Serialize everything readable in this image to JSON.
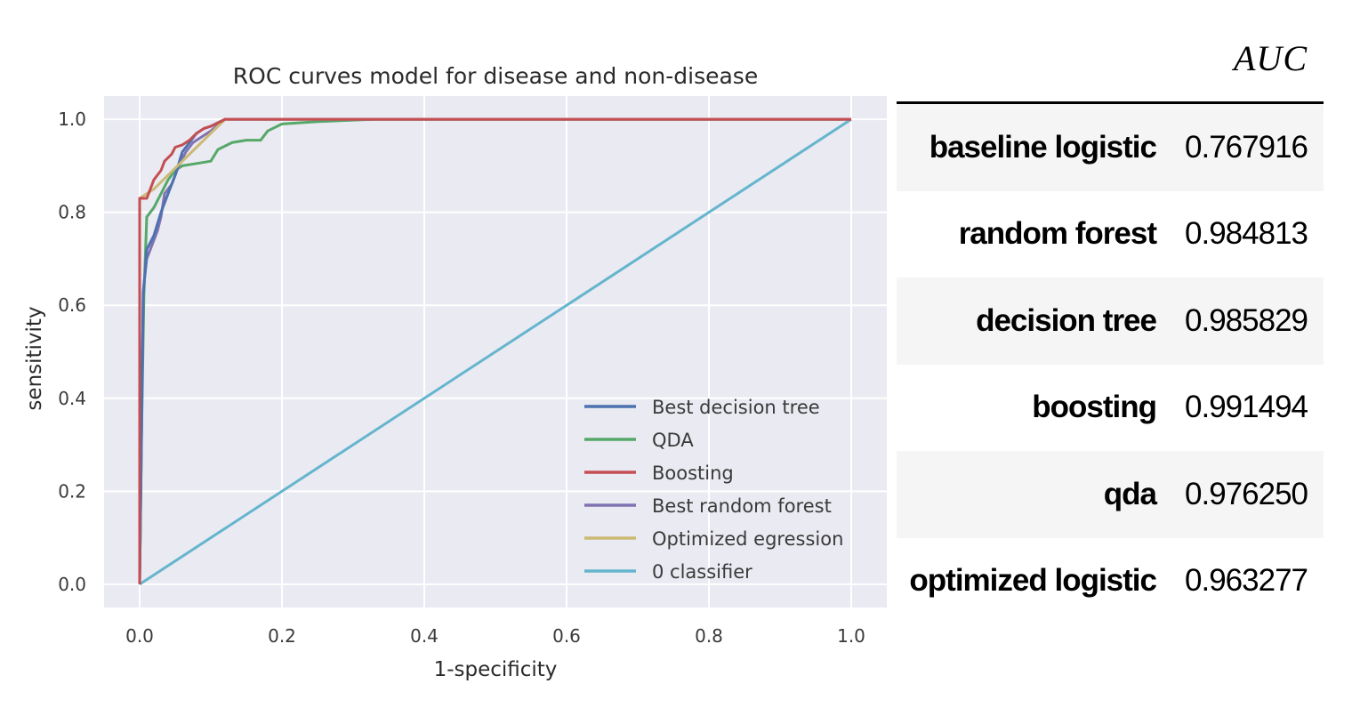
{
  "chart_data": {
    "type": "line",
    "title": "ROC curves model for disease and non-disease",
    "xlabel": "1-specificity",
    "ylabel": "sensitivity",
    "xlim": [
      -0.05,
      1.05
    ],
    "ylim": [
      -0.05,
      1.05
    ],
    "xticks": [
      "0.0",
      "0.2",
      "0.4",
      "0.6",
      "0.8",
      "1.0"
    ],
    "yticks": [
      "0.0",
      "0.2",
      "0.4",
      "0.6",
      "0.8",
      "1.0"
    ],
    "grid": true,
    "legend_position": "lower-right",
    "series": [
      {
        "name": "Best decision tree",
        "color": "#4c72b0",
        "points": [
          [
            0,
            0
          ],
          [
            0.005,
            0.62
          ],
          [
            0.01,
            0.72
          ],
          [
            0.02,
            0.75
          ],
          [
            0.03,
            0.8
          ],
          [
            0.04,
            0.84
          ],
          [
            0.05,
            0.88
          ],
          [
            0.06,
            0.93
          ],
          [
            0.07,
            0.95
          ],
          [
            0.08,
            0.97
          ],
          [
            0.09,
            0.98
          ],
          [
            0.1,
            0.985
          ],
          [
            0.12,
            1.0
          ],
          [
            1.0,
            1.0
          ]
        ]
      },
      {
        "name": "QDA",
        "color": "#55a868",
        "points": [
          [
            0,
            0
          ],
          [
            0.003,
            0.35
          ],
          [
            0.006,
            0.62
          ],
          [
            0.01,
            0.79
          ],
          [
            0.02,
            0.81
          ],
          [
            0.03,
            0.84
          ],
          [
            0.04,
            0.87
          ],
          [
            0.05,
            0.89
          ],
          [
            0.06,
            0.9
          ],
          [
            0.08,
            0.905
          ],
          [
            0.1,
            0.91
          ],
          [
            0.11,
            0.935
          ],
          [
            0.13,
            0.95
          ],
          [
            0.15,
            0.955
          ],
          [
            0.17,
            0.955
          ],
          [
            0.18,
            0.975
          ],
          [
            0.2,
            0.99
          ],
          [
            0.25,
            0.995
          ],
          [
            0.33,
            1.0
          ],
          [
            1.0,
            1.0
          ]
        ]
      },
      {
        "name": "Boosting",
        "color": "#c44e52",
        "points": [
          [
            0,
            0
          ],
          [
            0,
            0.83
          ],
          [
            0.01,
            0.83
          ],
          [
            0.015,
            0.85
          ],
          [
            0.02,
            0.87
          ],
          [
            0.03,
            0.89
          ],
          [
            0.035,
            0.91
          ],
          [
            0.045,
            0.925
          ],
          [
            0.05,
            0.94
          ],
          [
            0.06,
            0.945
          ],
          [
            0.07,
            0.955
          ],
          [
            0.08,
            0.97
          ],
          [
            0.09,
            0.98
          ],
          [
            0.1,
            0.985
          ],
          [
            0.12,
            1.0
          ],
          [
            1.0,
            1.0
          ]
        ]
      },
      {
        "name": "Best random forest",
        "color": "#8172b2",
        "points": [
          [
            0,
            0
          ],
          [
            0.005,
            0.63
          ],
          [
            0.01,
            0.7
          ],
          [
            0.015,
            0.72
          ],
          [
            0.025,
            0.76
          ],
          [
            0.03,
            0.79
          ],
          [
            0.035,
            0.84
          ],
          [
            0.045,
            0.86
          ],
          [
            0.055,
            0.9
          ],
          [
            0.065,
            0.93
          ],
          [
            0.075,
            0.95
          ],
          [
            0.085,
            0.96
          ],
          [
            0.1,
            0.975
          ],
          [
            0.12,
            1.0
          ],
          [
            1.0,
            1.0
          ]
        ]
      },
      {
        "name": "Optimized egression",
        "color": "#ccb974",
        "points": [
          [
            0,
            0
          ],
          [
            0,
            0.83
          ],
          [
            0.02,
            0.85
          ],
          [
            0.04,
            0.88
          ],
          [
            0.06,
            0.91
          ],
          [
            0.08,
            0.94
          ],
          [
            0.1,
            0.97
          ],
          [
            0.12,
            1.0
          ],
          [
            1.0,
            1.0
          ]
        ]
      },
      {
        "name": " 0 classifier",
        "color": "#64b5cd",
        "points": [
          [
            0,
            0
          ],
          [
            1,
            1
          ]
        ]
      }
    ]
  },
  "auc_table": {
    "header": "AUC",
    "rows": [
      {
        "model": "baseline logistic",
        "auc": "0.767916"
      },
      {
        "model": "random forest",
        "auc": "0.984813"
      },
      {
        "model": "decision tree",
        "auc": "0.985829"
      },
      {
        "model": "boosting",
        "auc": "0.991494"
      },
      {
        "model": "qda",
        "auc": "0.976250"
      },
      {
        "model": "optimized logistic",
        "auc": "0.963277"
      }
    ]
  }
}
